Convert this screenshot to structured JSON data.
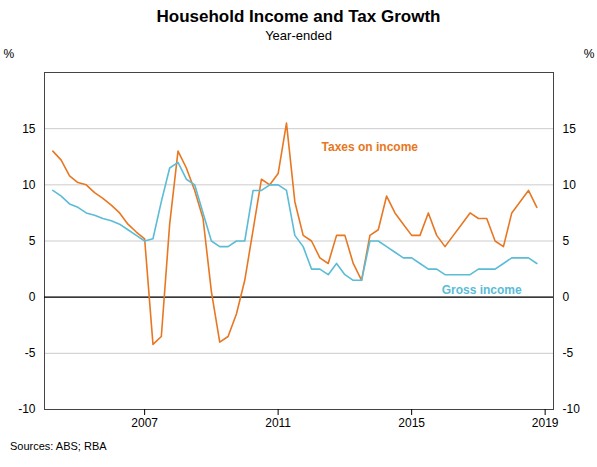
{
  "chart_data": {
    "type": "line",
    "title": "Household Income and Tax Growth",
    "subtitle": "Year-ended",
    "ylabel": "%",
    "y2label": "%",
    "source": "Sources:  ABS; RBA",
    "x": [
      2004.25,
      2004.5,
      2004.75,
      2005.0,
      2005.25,
      2005.5,
      2005.75,
      2006.0,
      2006.25,
      2006.5,
      2006.75,
      2007.0,
      2007.25,
      2007.5,
      2007.75,
      2008.0,
      2008.25,
      2008.5,
      2008.75,
      2009.0,
      2009.25,
      2009.5,
      2009.75,
      2010.0,
      2010.25,
      2010.5,
      2010.75,
      2011.0,
      2011.25,
      2011.5,
      2011.75,
      2012.0,
      2012.25,
      2012.5,
      2012.75,
      2013.0,
      2013.25,
      2013.5,
      2013.75,
      2014.0,
      2014.25,
      2014.5,
      2014.75,
      2015.0,
      2015.25,
      2015.5,
      2015.75,
      2016.0,
      2016.25,
      2016.5,
      2016.75,
      2017.0,
      2017.25,
      2017.5,
      2017.75,
      2018.0,
      2018.25,
      2018.5,
      2018.75
    ],
    "series": [
      {
        "name": "Taxes on income",
        "color": "#E87722",
        "values": [
          13.0,
          12.2,
          10.8,
          10.2,
          10.0,
          9.3,
          8.8,
          8.2,
          7.5,
          6.5,
          5.8,
          5.2,
          -4.2,
          -3.5,
          6.5,
          13.0,
          11.5,
          9.5,
          7.0,
          0.5,
          -4.0,
          -3.5,
          -1.5,
          1.5,
          6.0,
          10.5,
          10.0,
          11.0,
          15.5,
          8.5,
          5.5,
          5.0,
          3.5,
          3.0,
          5.5,
          5.5,
          3.0,
          1.5,
          5.5,
          6.0,
          9.0,
          7.5,
          6.5,
          5.5,
          5.5,
          7.5,
          5.5,
          4.5,
          5.5,
          6.5,
          7.5,
          7.0,
          7.0,
          5.0,
          4.5,
          7.5,
          8.5,
          9.5,
          8.0
        ]
      },
      {
        "name": "Gross income",
        "color": "#5BBCD6",
        "values": [
          9.5,
          9.0,
          8.3,
          8.0,
          7.5,
          7.3,
          7.0,
          6.8,
          6.5,
          6.0,
          5.5,
          5.0,
          5.2,
          8.5,
          11.5,
          12.0,
          10.5,
          10.0,
          7.5,
          5.0,
          4.5,
          4.5,
          5.0,
          5.0,
          9.5,
          9.5,
          10.0,
          10.0,
          9.5,
          5.5,
          4.5,
          2.5,
          2.5,
          2.0,
          3.0,
          2.0,
          1.5,
          1.5,
          5.0,
          5.0,
          4.5,
          4.0,
          3.5,
          3.5,
          3.0,
          2.5,
          2.5,
          2.0,
          2.0,
          2.0,
          2.0,
          2.5,
          2.5,
          2.5,
          3.0,
          3.5,
          3.5,
          3.5,
          3.0
        ]
      }
    ],
    "xlim": [
      2004.0,
      2019.25
    ],
    "xticks": [
      2007,
      2011,
      2015,
      2019
    ],
    "ylim": [
      -10,
      20
    ],
    "yticks": [
      -10,
      -5,
      0,
      5,
      10,
      15
    ],
    "y2lim": [
      -10,
      20
    ],
    "y2ticks": [
      -10,
      -5,
      0,
      5,
      10,
      15
    ],
    "grid": true,
    "annotations": [
      {
        "text": "Taxes on income",
        "x": 2012.3,
        "y": 13.0,
        "color": "#E87722"
      },
      {
        "text": "Gross income",
        "x": 2015.9,
        "y": 0.3,
        "color": "#5BBCD6"
      }
    ]
  }
}
